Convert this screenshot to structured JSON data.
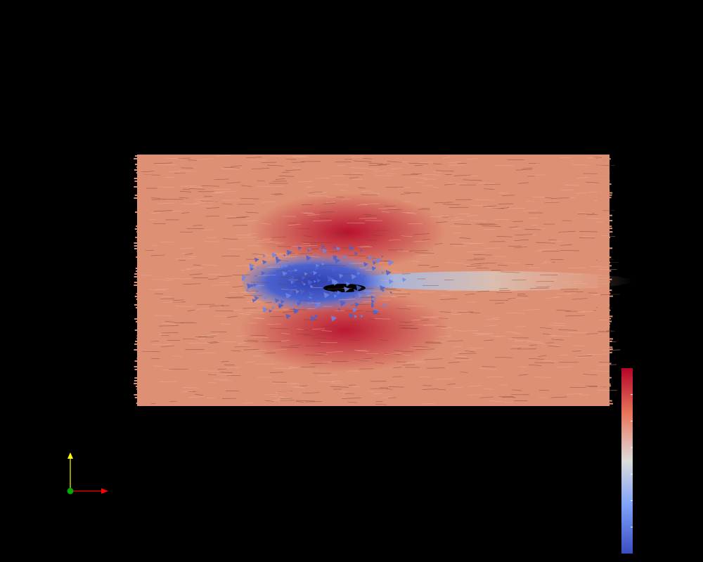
{
  "viewport": {
    "background": "#000000",
    "view": "glyph-velocity-field",
    "field_colors": {
      "base": "#de9074",
      "high": "#b40426",
      "mid": "#dddddd",
      "low": "#3b4cc0"
    }
  },
  "colorbar": {
    "orientation": "vertical",
    "top_color": "#b40426",
    "mid_color": "#dddddd",
    "bottom_color": "#3b4cc0",
    "tick_count": 7
  },
  "axes_widget": {
    "x_color": "#ff0000",
    "y_color": "#ffff00",
    "z_color": "#00aa00",
    "icon": "orientation-axes-icon"
  }
}
